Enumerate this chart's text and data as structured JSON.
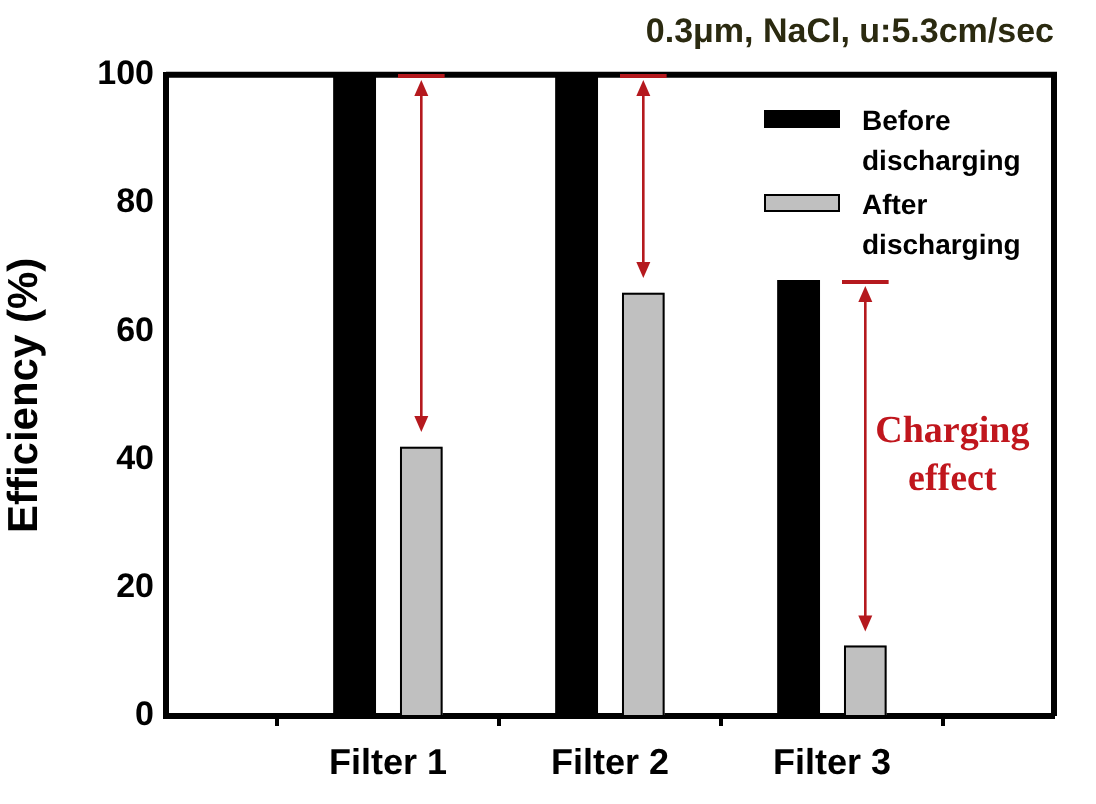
{
  "chart_data": {
    "type": "bar",
    "title": "0.3μm, NaCl, u:5.3cm/sec",
    "ylabel": "Efficiency (%)",
    "categories": [
      "Filter 1",
      "Filter 2",
      "Filter 3"
    ],
    "series": [
      {
        "name": "Before discharging",
        "color": "#000000",
        "values": [
          100,
          100,
          68
        ]
      },
      {
        "name": "After discharging",
        "color": "#c0c0c0",
        "values": [
          42,
          66,
          11
        ]
      }
    ],
    "ylim": [
      0,
      100
    ],
    "yticks": [
      0,
      20,
      40,
      60,
      80,
      100
    ],
    "grid": false,
    "legend": "top right",
    "annotations": [
      "Charging effect"
    ]
  }
}
